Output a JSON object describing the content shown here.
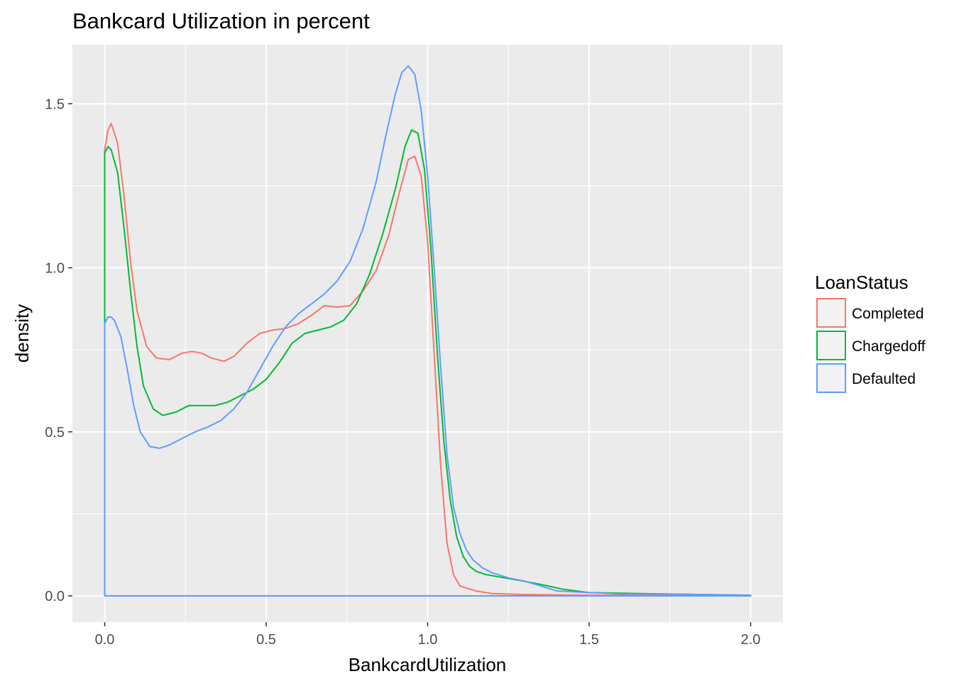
{
  "chart_data": {
    "type": "line",
    "title": "Bankcard Utilization in percent",
    "xlabel": "BankcardUtilization",
    "ylabel": "density",
    "xlim": [
      -0.1,
      2.1
    ],
    "ylim": [
      -0.08,
      1.68
    ],
    "xticks": [
      0.0,
      0.5,
      1.0,
      1.5,
      2.0
    ],
    "xtick_labels": [
      "0.0",
      "0.5",
      "1.0",
      "1.5",
      "2.0"
    ],
    "yticks": [
      0.0,
      0.5,
      1.0,
      1.5
    ],
    "ytick_labels": [
      "0.0",
      "0.5",
      "1.0",
      "1.5"
    ],
    "grid": true,
    "panel_background": "#ebebeb",
    "legend": {
      "title": "LoanStatus",
      "position": "right"
    },
    "series": [
      {
        "name": "Completed",
        "color": "#f8766d",
        "x": [
          0.0,
          0.01,
          0.02,
          0.04,
          0.06,
          0.08,
          0.1,
          0.13,
          0.16,
          0.2,
          0.24,
          0.27,
          0.3,
          0.33,
          0.37,
          0.4,
          0.44,
          0.48,
          0.52,
          0.56,
          0.6,
          0.64,
          0.68,
          0.72,
          0.76,
          0.8,
          0.84,
          0.88,
          0.91,
          0.94,
          0.96,
          0.98,
          1.0,
          1.02,
          1.04,
          1.06,
          1.08,
          1.1,
          1.15,
          1.2,
          1.3,
          1.4,
          1.5,
          1.6,
          1.8,
          2.0
        ],
        "y": [
          1.36,
          1.42,
          1.44,
          1.38,
          1.22,
          1.02,
          0.87,
          0.76,
          0.725,
          0.72,
          0.74,
          0.745,
          0.74,
          0.725,
          0.715,
          0.73,
          0.77,
          0.8,
          0.81,
          0.815,
          0.83,
          0.855,
          0.885,
          0.88,
          0.885,
          0.93,
          0.99,
          1.1,
          1.22,
          1.33,
          1.34,
          1.28,
          1.08,
          0.74,
          0.4,
          0.16,
          0.065,
          0.03,
          0.015,
          0.007,
          0.004,
          0.003,
          0.002,
          0.002,
          0.002,
          0.001
        ]
      },
      {
        "name": "Chargedoff",
        "color": "#00ba38",
        "x": [
          0.0,
          0.01,
          0.02,
          0.04,
          0.06,
          0.08,
          0.1,
          0.12,
          0.15,
          0.18,
          0.22,
          0.26,
          0.3,
          0.34,
          0.38,
          0.42,
          0.46,
          0.5,
          0.54,
          0.58,
          0.62,
          0.66,
          0.7,
          0.74,
          0.78,
          0.82,
          0.86,
          0.9,
          0.93,
          0.95,
          0.97,
          0.99,
          1.01,
          1.03,
          1.05,
          1.07,
          1.09,
          1.11,
          1.13,
          1.15,
          1.18,
          1.22,
          1.28,
          1.35,
          1.42,
          1.5,
          1.6,
          1.8,
          2.0
        ],
        "y": [
          1.35,
          1.37,
          1.36,
          1.29,
          1.12,
          0.93,
          0.76,
          0.64,
          0.57,
          0.55,
          0.56,
          0.58,
          0.58,
          0.58,
          0.59,
          0.61,
          0.63,
          0.66,
          0.71,
          0.77,
          0.8,
          0.81,
          0.82,
          0.84,
          0.89,
          0.98,
          1.1,
          1.24,
          1.37,
          1.42,
          1.41,
          1.3,
          1.06,
          0.74,
          0.47,
          0.29,
          0.18,
          0.12,
          0.09,
          0.075,
          0.065,
          0.058,
          0.048,
          0.035,
          0.02,
          0.01,
          0.008,
          0.005,
          0.002
        ]
      },
      {
        "name": "Defaulted",
        "color": "#619cff",
        "x": [
          0.0,
          0.01,
          0.02,
          0.03,
          0.05,
          0.07,
          0.09,
          0.11,
          0.14,
          0.17,
          0.2,
          0.24,
          0.28,
          0.32,
          0.36,
          0.4,
          0.44,
          0.48,
          0.52,
          0.56,
          0.6,
          0.64,
          0.68,
          0.72,
          0.76,
          0.8,
          0.84,
          0.87,
          0.9,
          0.92,
          0.94,
          0.96,
          0.98,
          1.0,
          1.02,
          1.04,
          1.06,
          1.08,
          1.1,
          1.12,
          1.14,
          1.17,
          1.2,
          1.25,
          1.3,
          1.35,
          1.4,
          1.5,
          1.6,
          1.8,
          2.0
        ],
        "y": [
          0.83,
          0.85,
          0.85,
          0.84,
          0.79,
          0.69,
          0.58,
          0.5,
          0.455,
          0.45,
          0.46,
          0.48,
          0.5,
          0.515,
          0.535,
          0.57,
          0.62,
          0.69,
          0.76,
          0.82,
          0.86,
          0.89,
          0.92,
          0.96,
          1.02,
          1.12,
          1.26,
          1.4,
          1.53,
          1.595,
          1.615,
          1.59,
          1.48,
          1.28,
          1.0,
          0.7,
          0.43,
          0.27,
          0.19,
          0.14,
          0.11,
          0.085,
          0.07,
          0.055,
          0.045,
          0.03,
          0.015,
          0.01,
          0.006,
          0.005,
          0.002
        ]
      }
    ]
  }
}
